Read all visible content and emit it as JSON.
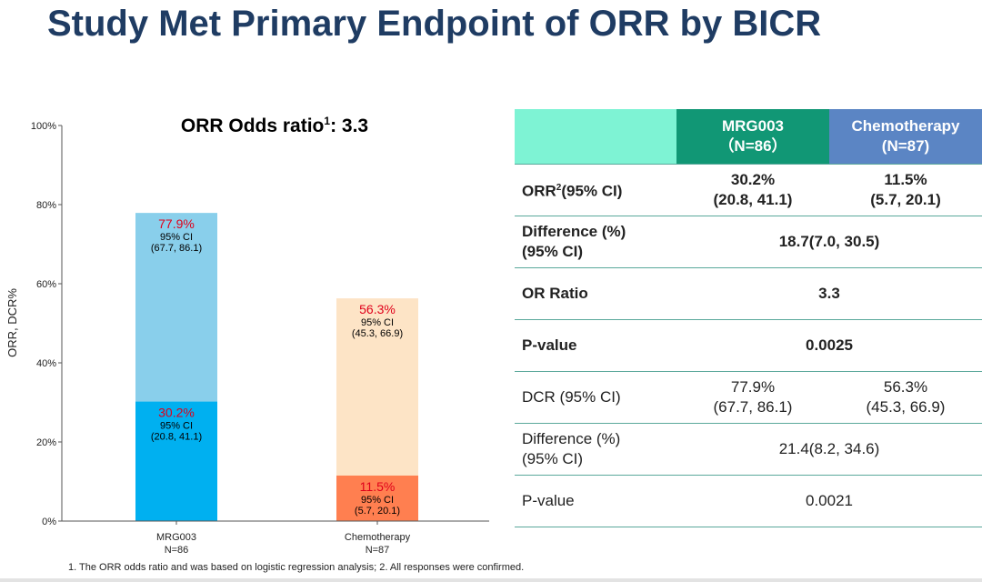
{
  "page_title": "Study Met Primary Endpoint of ORR by BICR",
  "chart_data": {
    "type": "bar",
    "title": "ORR Odds ratio",
    "title_superscript": "1",
    "title_value": ": 3.3",
    "ylabel": "ORR, DCR%",
    "ylim": [
      0,
      100
    ],
    "yticks": [
      "0%",
      "20%",
      "40%",
      "60%",
      "80%",
      "100%"
    ],
    "ytick_values": [
      0,
      20,
      40,
      60,
      80,
      100
    ],
    "categories": [
      "MRG003",
      "Chemotherapy"
    ],
    "category_n": [
      "N=86",
      "N=87"
    ],
    "series": [
      {
        "values": [
          30.2,
          11.5
        ],
        "colors": [
          "#00b0f0",
          "#ff7f50"
        ],
        "labels": [
          "30.2%",
          "11.5%"
        ],
        "ci_caption": "95% CI",
        "ci": [
          "(20.8, 41.1)",
          "(5.7, 20.1)"
        ]
      },
      {
        "values": [
          77.9,
          56.3
        ],
        "colors": [
          "#89cfeb",
          "#fde4c6"
        ],
        "labels": [
          "77.9%",
          "56.3%"
        ],
        "ci_caption": "95% CI",
        "ci": [
          "(67.7, 86.1)",
          "(45.3, 66.9)"
        ]
      }
    ],
    "label_color": "#e0001a",
    "grid": false
  },
  "table": {
    "header": {
      "col1": "MRG003",
      "col1_n": "（N=86）",
      "col2": "Chemotherapy",
      "col2_n": "(N=87)"
    },
    "rows": [
      {
        "label": "ORR",
        "label_sup": "2",
        "label_suffix": "(95% CI)",
        "c1": "30.2%",
        "c1b": "(20.8, 41.1)",
        "c2": "11.5%",
        "c2b": "(5.7, 20.1)"
      },
      {
        "label": "Difference (%)",
        "label2": "(95% CI)",
        "merged": "18.7(7.0, 30.5)"
      },
      {
        "label": "OR Ratio",
        "merged": "3.3"
      },
      {
        "label": "P-value",
        "merged": "0.0025"
      },
      {
        "label": "DCR (95% CI)",
        "c1": "77.9%",
        "c1b": "(67.7, 86.1)",
        "c2": "56.3%",
        "c2b": "(45.3, 66.9)"
      },
      {
        "label": "Difference (%)",
        "label2": "(95% CI)",
        "merged": "21.4(8.2, 34.6)"
      },
      {
        "label": "P-value",
        "merged": "0.0021"
      }
    ],
    "colors": {
      "header_blank": "#7ef3d4",
      "header_mrg": "#119775",
      "header_chemo": "#5b85c4",
      "rule": "#5aa89b"
    }
  },
  "footnote": "1. The ORR odds ratio and was based on logistic regression analysis; 2. All responses were confirmed."
}
